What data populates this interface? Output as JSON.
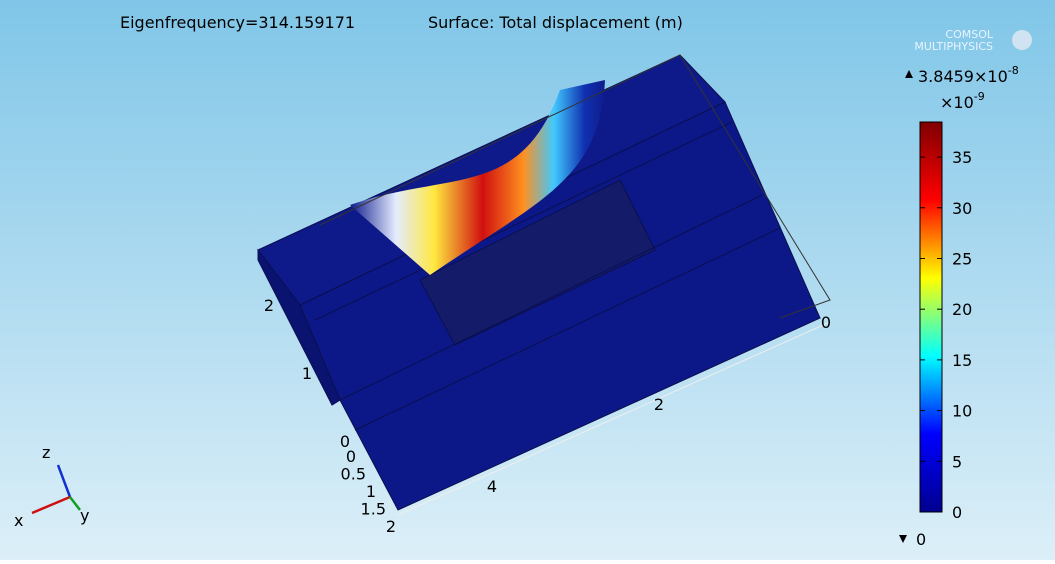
{
  "chart_data": {
    "type": "surface3d",
    "title": "Eigenfrequency=314.159171",
    "subtitle": "Surface: Total displacement (m)",
    "logo": [
      "COMSOL",
      "MULTIPHYSICS"
    ],
    "colorbar": {
      "lim": [
        0,
        38.459
      ],
      "ticks": [
        0,
        5,
        10,
        15,
        20,
        25,
        30,
        35
      ],
      "multiplier": "×10",
      "multiplier_exp": "-9",
      "max": {
        "value": 3.8459e-08,
        "label": "3.8459×10"
      },
      "max_exp": "-8",
      "min": 0,
      "colors": [
        "#00008f",
        "#0000ff",
        "#00ffff",
        "#ffff00",
        "#ff0000",
        "#800000"
      ]
    },
    "z_ticks": [
      0,
      1,
      2
    ],
    "y_ticks": [
      0,
      0.5,
      1,
      1.5,
      2
    ],
    "x_ticks": [
      0,
      2,
      4
    ],
    "triad": [
      "x",
      "y",
      "z"
    ]
  }
}
